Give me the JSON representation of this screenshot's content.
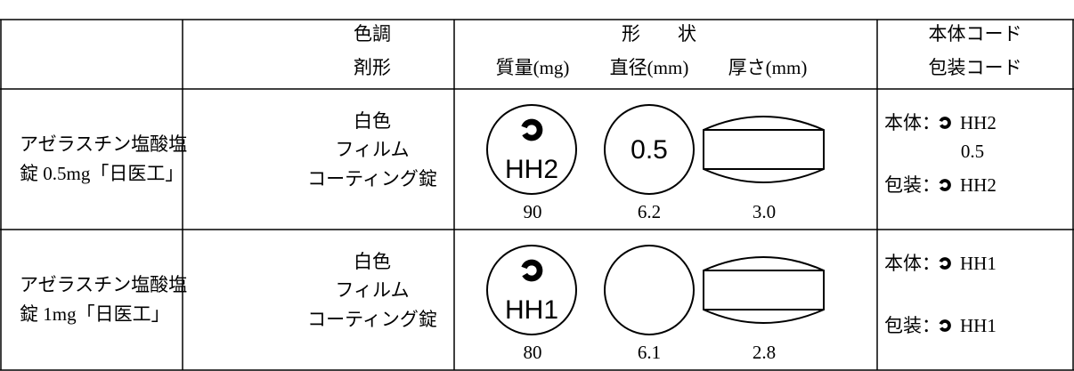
{
  "table": {
    "header": {
      "color": "色調",
      "form": "剤形",
      "shape": "形　　状",
      "mass": "質量(mg)",
      "diameter": "直径(mm)",
      "thickness": "厚さ(mm)",
      "code_body": "本体コード",
      "code_package": "包装コード"
    },
    "rows": [
      {
        "name_lines": [
          "アゼラスチン塩酸塩",
          "錠 0.5mg「日医工」"
        ],
        "color": "白色",
        "form_lines": [
          "フィルム",
          "コーティング錠"
        ],
        "front_imprint": "HH2",
        "back_imprint": "0.5",
        "mass": "90",
        "diameter": "6.2",
        "thickness": "3.0",
        "body_label": "本体：",
        "body_code": "HH2",
        "body_code2": "0.5",
        "package_label": "包装：",
        "package_code": "HH2"
      },
      {
        "name_lines": [
          "アゼラスチン塩酸塩",
          "錠 1mg「日医工」"
        ],
        "color": "白色",
        "form_lines": [
          "フィルム",
          "コーティング錠"
        ],
        "front_imprint": "HH1",
        "mass": "80",
        "diameter": "6.1",
        "thickness": "2.8",
        "body_label": "本体：",
        "body_code": "HH1",
        "package_label": "包装：",
        "package_code": "HH1"
      }
    ]
  }
}
